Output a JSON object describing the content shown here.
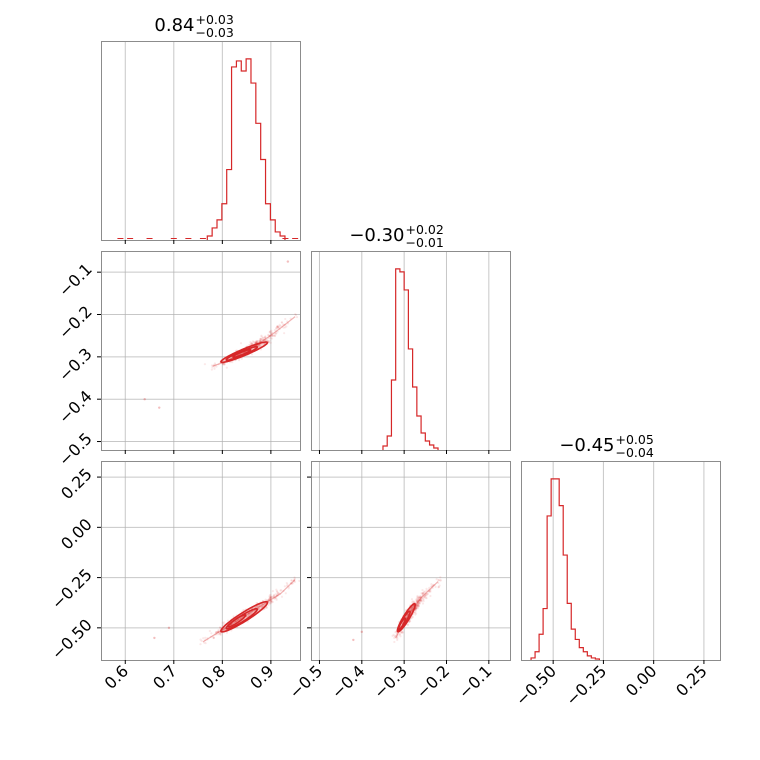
{
  "chart_data": {
    "type": "corner",
    "color": "#d62728",
    "params": [
      {
        "median": 0.84,
        "plus": 0.03,
        "minus": 0.03,
        "range": [
          0.55,
          0.96
        ],
        "ticks": [
          0.6,
          0.7,
          0.8,
          0.9
        ],
        "tick_labels": [
          "0.6",
          "0.7",
          "0.8",
          "0.9"
        ],
        "title": {
          "main": "0.84",
          "sup": "+0.03",
          "sub": "−0.03"
        },
        "hist": {
          "bins": [
            0.774,
            0.784,
            0.794,
            0.804,
            0.814,
            0.824,
            0.834,
            0.844,
            0.854,
            0.864,
            0.874,
            0.884,
            0.894,
            0.904,
            0.914,
            0.924
          ],
          "values": [
            2,
            6,
            10,
            18,
            35,
            86,
            89,
            84,
            90,
            78,
            58,
            40,
            18,
            10,
            4,
            2
          ]
        },
        "hist_tail": [
          0.59,
          0.61,
          0.65,
          0.7,
          0.73,
          0.76,
          0.93,
          0.95
        ]
      },
      {
        "median": -0.3,
        "plus": 0.02,
        "minus": 0.01,
        "range": [
          -0.52,
          -0.05
        ],
        "ticks": [
          -0.5,
          -0.4,
          -0.3,
          -0.2,
          -0.1
        ],
        "tick_labels": [
          "−0.5",
          "−0.4",
          "−0.3",
          "−0.2",
          "−0.1"
        ],
        "title": {
          "main": "−0.30",
          "sup": "+0.02",
          "sub": "−0.01"
        },
        "hist": {
          "bins": [
            -0.345,
            -0.335,
            -0.325,
            -0.315,
            -0.305,
            -0.295,
            -0.285,
            -0.275,
            -0.265,
            -0.255,
            -0.245,
            -0.235,
            -0.225
          ],
          "values": [
            4,
            14,
            70,
            181,
            178,
            160,
            101,
            63,
            34,
            17,
            9,
            5,
            2
          ]
        }
      },
      {
        "median": -0.45,
        "plus": 0.05,
        "minus": 0.04,
        "range": [
          -0.66,
          0.33
        ],
        "ticks": [
          -0.5,
          -0.25,
          0.0,
          0.25
        ],
        "tick_labels": [
          "−0.50",
          "−0.25",
          "0.00",
          "0.25"
        ],
        "title": {
          "main": "−0.45",
          "sup": "+0.05",
          "sub": "−0.04"
        },
        "hist": {
          "bins": [
            -0.6,
            -0.58,
            -0.56,
            -0.54,
            -0.52,
            -0.5,
            -0.48,
            -0.46,
            -0.44,
            -0.42,
            -0.4,
            -0.38,
            -0.36,
            -0.34,
            -0.32,
            -0.3,
            -0.28
          ],
          "values": [
            2,
            8,
            25,
            50,
            140,
            176,
            176,
            150,
            102,
            55,
            30,
            20,
            12,
            8,
            4,
            2,
            1
          ]
        }
      }
    ],
    "pairs": [
      {
        "x_param": 0,
        "y_param": 1,
        "trend": [
          [
            0.78,
            -0.322
          ],
          [
            0.8,
            -0.314
          ],
          [
            0.82,
            -0.303
          ],
          [
            0.84,
            -0.292
          ],
          [
            0.86,
            -0.279
          ],
          [
            0.88,
            -0.265
          ],
          [
            0.9,
            -0.249
          ],
          [
            0.92,
            -0.232
          ],
          [
            0.95,
            -0.205
          ]
        ],
        "contours": [
          {
            "cx": 0.84,
            "cy": -0.292,
            "sx": 0.018,
            "sy": 0.009,
            "rho": 0.93
          },
          {
            "cx": 0.84,
            "cy": -0.292,
            "sx": 0.032,
            "sy": 0.016,
            "rho": 0.94
          },
          {
            "cx": 0.845,
            "cy": -0.289,
            "sx": 0.048,
            "sy": 0.024,
            "rho": 0.94
          }
        ],
        "outliers": [
          [
            0.64,
            -0.4
          ],
          [
            0.67,
            -0.42
          ],
          [
            0.935,
            -0.075
          ]
        ]
      },
      {
        "x_param": 0,
        "y_param": 2,
        "trend": [
          [
            0.76,
            -0.57
          ],
          [
            0.78,
            -0.54
          ],
          [
            0.8,
            -0.51
          ],
          [
            0.82,
            -0.48
          ],
          [
            0.84,
            -0.45
          ],
          [
            0.86,
            -0.42
          ],
          [
            0.88,
            -0.39
          ],
          [
            0.9,
            -0.36
          ],
          [
            0.92,
            -0.33
          ],
          [
            0.95,
            -0.26
          ]
        ],
        "contours": [
          {
            "cx": 0.83,
            "cy": -0.465,
            "sx": 0.018,
            "sy": 0.03,
            "rho": 0.93
          },
          {
            "cx": 0.84,
            "cy": -0.455,
            "sx": 0.032,
            "sy": 0.05,
            "rho": 0.94
          },
          {
            "cx": 0.845,
            "cy": -0.445,
            "sx": 0.048,
            "sy": 0.075,
            "rho": 0.94
          }
        ],
        "outliers": [
          [
            0.66,
            -0.55
          ],
          [
            0.69,
            -0.5
          ]
        ]
      },
      {
        "x_param": 1,
        "y_param": 2,
        "trend": [
          [
            -0.32,
            -0.55
          ],
          [
            -0.31,
            -0.51
          ],
          [
            -0.3,
            -0.47
          ],
          [
            -0.29,
            -0.44
          ],
          [
            -0.28,
            -0.41
          ],
          [
            -0.27,
            -0.38
          ],
          [
            -0.26,
            -0.35
          ],
          [
            -0.24,
            -0.31
          ],
          [
            -0.22,
            -0.27
          ]
        ],
        "contours": [
          {
            "cx": -0.305,
            "cy": -0.48,
            "sx": 0.008,
            "sy": 0.028,
            "rho": 0.9
          },
          {
            "cx": -0.3,
            "cy": -0.465,
            "sx": 0.014,
            "sy": 0.048,
            "rho": 0.92
          },
          {
            "cx": -0.295,
            "cy": -0.45,
            "sx": 0.021,
            "sy": 0.07,
            "rho": 0.92
          }
        ],
        "outliers": [
          [
            -0.42,
            -0.56
          ],
          [
            -0.4,
            -0.52
          ]
        ]
      }
    ]
  }
}
